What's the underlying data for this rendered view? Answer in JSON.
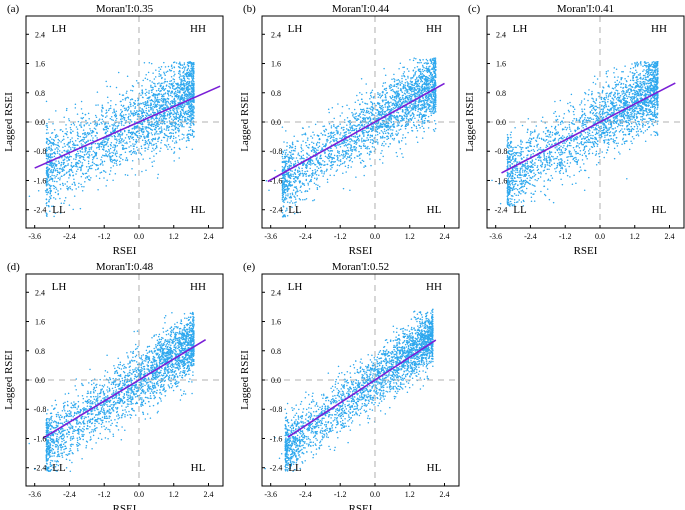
{
  "figure": {
    "colors": {
      "points": "#2ea8ee",
      "fit_line": "#7a1fd6",
      "axes": "#000000",
      "guides": "#b0b0b0"
    }
  },
  "chart_data": [
    {
      "type": "scatter",
      "panel_label": "(a)",
      "title": "Moran'I:0.35",
      "xlabel": "RSEI",
      "ylabel": "Lagged RSEI",
      "xticks": [
        "-3.6",
        "-2.4",
        "-1.2",
        "0.0",
        "1.2",
        "2.4"
      ],
      "yticks": [
        "-2.4",
        "-1.6",
        "-0.8",
        "0.0",
        "0.8",
        "1.6",
        "2.4"
      ],
      "xlim": [
        -3.9,
        2.9
      ],
      "ylim": [
        -2.9,
        2.9
      ],
      "quadrant_labels": {
        "top_left": "LH",
        "top_right": "HH",
        "bottom_left": "LL",
        "bottom_right": "HL"
      },
      "fit_line": {
        "slope": 0.35,
        "intercept": 0.0,
        "x_range": [
          -3.6,
          2.8
        ]
      },
      "cloud": {
        "x_range": [
          -3.2,
          1.9
        ],
        "y_spread": 0.55,
        "y_min": -2.6,
        "y_max": 1.65
      }
    },
    {
      "type": "scatter",
      "panel_label": "(b)",
      "title": "Moran'I:0.44",
      "xlabel": "RSEI",
      "ylabel": "Lagged RSEI",
      "xticks": [
        "-3.6",
        "-2.4",
        "-1.2",
        "0.0",
        "1.2",
        "2.4"
      ],
      "yticks": [
        "-2.4",
        "-1.6",
        "-0.8",
        "0.0",
        "0.8",
        "1.6",
        "2.4"
      ],
      "xlim": [
        -3.9,
        2.9
      ],
      "ylim": [
        -2.9,
        2.9
      ],
      "quadrant_labels": {
        "top_left": "LH",
        "top_right": "HH",
        "bottom_left": "LL",
        "bottom_right": "HL"
      },
      "fit_line": {
        "slope": 0.44,
        "intercept": 0.0,
        "x_range": [
          -3.7,
          2.4
        ]
      },
      "cloud": {
        "x_range": [
          -3.2,
          2.1
        ],
        "y_spread": 0.45,
        "y_min": -2.6,
        "y_max": 1.75
      }
    },
    {
      "type": "scatter",
      "panel_label": "(c)",
      "title": "Moran'I:0.41",
      "xlabel": "RSEI",
      "ylabel": "Lagged RSEI",
      "xticks": [
        "-3.6",
        "-2.4",
        "-1.2",
        "0.0",
        "1.2",
        "2.4"
      ],
      "yticks": [
        "-2.4",
        "-1.6",
        "-0.8",
        "0.0",
        "0.8",
        "1.6",
        "2.4"
      ],
      "xlim": [
        -3.9,
        2.9
      ],
      "ylim": [
        -2.9,
        2.9
      ],
      "quadrant_labels": {
        "top_left": "LH",
        "top_right": "HH",
        "bottom_left": "LL",
        "bottom_right": "HL"
      },
      "fit_line": {
        "slope": 0.41,
        "intercept": 0.0,
        "x_range": [
          -3.4,
          2.6
        ]
      },
      "cloud": {
        "x_range": [
          -3.2,
          2.0
        ],
        "y_spread": 0.5,
        "y_min": -2.3,
        "y_max": 1.65
      }
    },
    {
      "type": "scatter",
      "panel_label": "(d)",
      "title": "Moran'I:0.48",
      "xlabel": "RSEI",
      "ylabel": "Lagged RSEI",
      "xticks": [
        "-3.6",
        "-2.4",
        "-1.2",
        "0.0",
        "1.2",
        "2.4"
      ],
      "yticks": [
        "-2.4",
        "-1.6",
        "-0.8",
        "0.0",
        "0.8",
        "1.6",
        "2.4"
      ],
      "xlim": [
        -3.9,
        2.9
      ],
      "ylim": [
        -2.9,
        2.9
      ],
      "quadrant_labels": {
        "top_left": "LH",
        "top_right": "HH",
        "bottom_left": "LL",
        "bottom_right": "HL"
      },
      "fit_line": {
        "slope": 0.48,
        "intercept": 0.0,
        "x_range": [
          -3.3,
          2.3
        ]
      },
      "cloud": {
        "x_range": [
          -3.2,
          1.9
        ],
        "y_spread": 0.42,
        "y_min": -2.5,
        "y_max": 1.85
      }
    },
    {
      "type": "scatter",
      "panel_label": "(e)",
      "title": "Moran'I:0.52",
      "xlabel": "RSEI",
      "ylabel": "Lagged RSEI",
      "xticks": [
        "-3.6",
        "-2.4",
        "-1.2",
        "0.0",
        "1.2",
        "2.4"
      ],
      "yticks": [
        "-2.4",
        "-1.6",
        "-0.8",
        "0.0",
        "0.8",
        "1.6",
        "2.4"
      ],
      "xlim": [
        -3.9,
        2.9
      ],
      "ylim": [
        -2.9,
        2.9
      ],
      "quadrant_labels": {
        "top_left": "LH",
        "top_right": "HH",
        "bottom_left": "LL",
        "bottom_right": "HL"
      },
      "fit_line": {
        "slope": 0.52,
        "intercept": 0.0,
        "x_range": [
          -3.0,
          2.1
        ]
      },
      "cloud": {
        "x_range": [
          -3.1,
          2.0
        ],
        "y_spread": 0.38,
        "y_min": -2.5,
        "y_max": 1.95
      }
    }
  ]
}
